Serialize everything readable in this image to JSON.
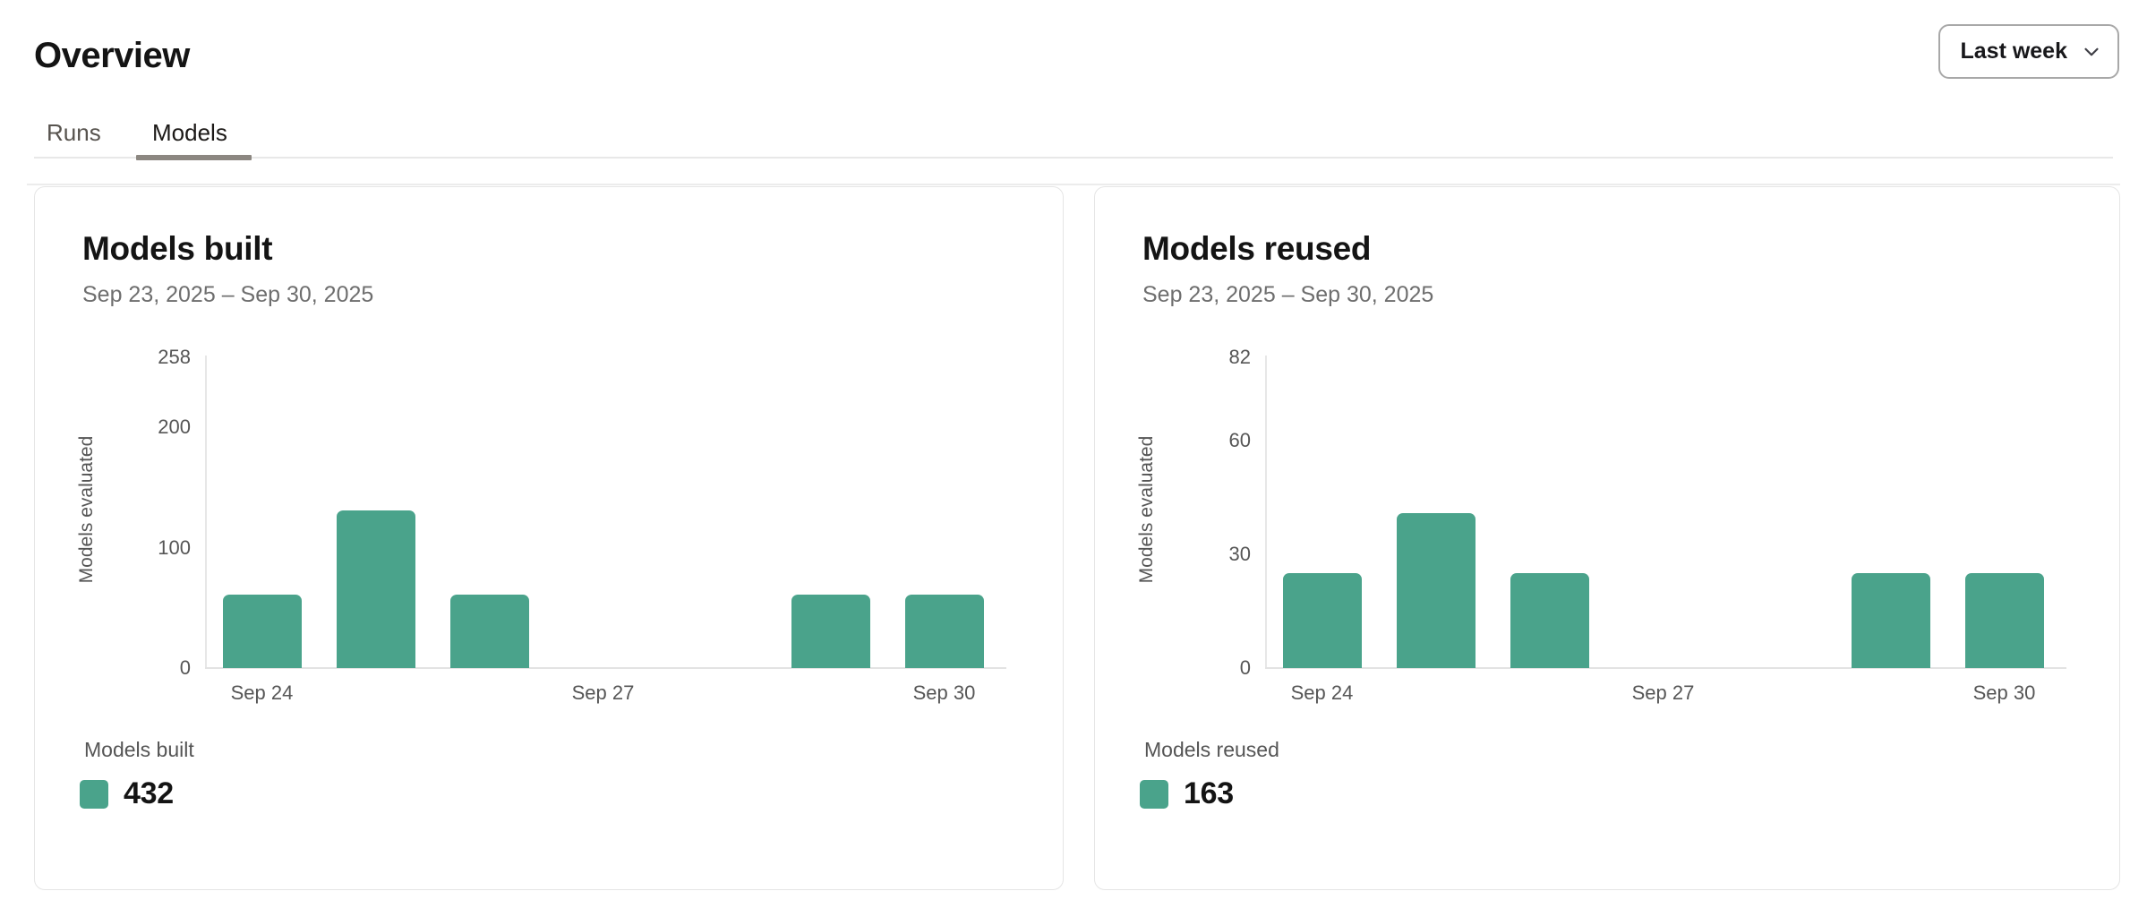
{
  "page": {
    "title": "Overview"
  },
  "range_selector": {
    "label": "Last week",
    "icon": "chevron-down"
  },
  "tabs": [
    {
      "label": "Runs",
      "active": false
    },
    {
      "label": "Models",
      "active": true
    }
  ],
  "colors": {
    "accent_teal": "#4AA38B",
    "tab_underline": "#8C8781",
    "divider": "#ECECEC"
  },
  "cards": [
    {
      "title": "Models built",
      "date_range": "Sep 23, 2025 – Sep 30, 2025",
      "legend": {
        "label": "Models built",
        "total": "432",
        "swatch_color": "#4AA38B"
      }
    },
    {
      "title": "Models reused",
      "date_range": "Sep 23, 2025 – Sep 30, 2025",
      "legend": {
        "label": "Models reused",
        "total": "163",
        "swatch_color": "#4AA38B"
      }
    }
  ],
  "chart_data": [
    {
      "type": "bar",
      "title": "Models built",
      "xlabel": "",
      "ylabel": "Models evaluated",
      "ylim": [
        0,
        258
      ],
      "yticks": [
        0,
        100,
        200,
        258
      ],
      "categories": [
        "Sep 24",
        "Sep 25",
        "Sep 26",
        "Sep 27",
        "Sep 28",
        "Sep 29",
        "Sep 30"
      ],
      "values": [
        61,
        131,
        61,
        0,
        0,
        61,
        61
      ],
      "xtick_labels": [
        {
          "index": 0,
          "label": "Sep 24"
        },
        {
          "index": 3,
          "label": "Sep 27"
        },
        {
          "index": 6,
          "label": "Sep 30"
        }
      ],
      "bar_color": "#4AA38B",
      "grid": false,
      "legend_position": "bottom",
      "legend_total": 432
    },
    {
      "type": "bar",
      "title": "Models reused",
      "xlabel": "",
      "ylabel": "Models evaluated",
      "ylim": [
        0,
        82
      ],
      "yticks": [
        0,
        30,
        60,
        82
      ],
      "categories": [
        "Sep 24",
        "Sep 25",
        "Sep 26",
        "Sep 27",
        "Sep 28",
        "Sep 29",
        "Sep 30"
      ],
      "values": [
        25,
        41,
        25,
        0,
        0,
        25,
        25
      ],
      "xtick_labels": [
        {
          "index": 0,
          "label": "Sep 24"
        },
        {
          "index": 3,
          "label": "Sep 27"
        },
        {
          "index": 6,
          "label": "Sep 30"
        }
      ],
      "bar_color": "#4AA38B",
      "grid": false,
      "legend_position": "bottom",
      "legend_total": 163
    }
  ]
}
